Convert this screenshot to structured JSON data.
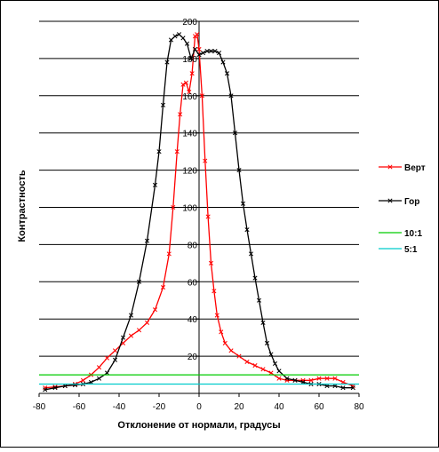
{
  "chart_data": {
    "type": "line",
    "title": "",
    "xlabel": "Отклонение от нормали, градусы",
    "ylabel": "Контрастность",
    "xlim": [
      -80,
      80
    ],
    "ylim": [
      0,
      200
    ],
    "x_ticks": [
      -80,
      -60,
      -40,
      -20,
      0,
      20,
      40,
      60,
      80
    ],
    "y_ticks": [
      20,
      40,
      60,
      80,
      100,
      120,
      140,
      160,
      180,
      200
    ],
    "grid": "horizontal",
    "legend": "right",
    "series": [
      {
        "name": "Верт",
        "color": "#ff0000",
        "marker": "x",
        "x": [
          -77,
          -72,
          -67,
          -62,
          -58,
          -54,
          -50,
          -46,
          -42,
          -38,
          -34,
          -30,
          -26,
          -22,
          -18,
          -15,
          -13,
          -11,
          -9.5,
          -8,
          -6.5,
          -5,
          -3.5,
          -2,
          -1,
          0,
          1.5,
          3,
          4.5,
          6,
          7.5,
          9,
          11,
          13,
          16,
          20,
          24,
          28,
          32,
          36,
          40,
          44,
          48,
          52,
          56,
          60,
          64,
          68,
          72,
          77
        ],
        "y": [
          3,
          3.5,
          4,
          5,
          7,
          10,
          14,
          19,
          23,
          27,
          31,
          34,
          38,
          45,
          57,
          75,
          100,
          130,
          150,
          166,
          167,
          162,
          172,
          192,
          193,
          185,
          160,
          125,
          95,
          70,
          55,
          42,
          33,
          27,
          23,
          20,
          17,
          15,
          13,
          11,
          8,
          7,
          7,
          7,
          7,
          8,
          8,
          8,
          6,
          4
        ]
      },
      {
        "name": "Гор",
        "color": "#000000",
        "marker": "x",
        "x": [
          -77,
          -72,
          -67,
          -62,
          -58,
          -54,
          -50,
          -46,
          -42,
          -38,
          -34,
          -30,
          -26,
          -22,
          -20,
          -18,
          -16,
          -14,
          -12,
          -10,
          -8,
          -6,
          -4,
          -2,
          0,
          2,
          4,
          6,
          8,
          10,
          12,
          14,
          16,
          18,
          20,
          22,
          24,
          26,
          28,
          30,
          32,
          34,
          36,
          38,
          40,
          44,
          48,
          52,
          56,
          60,
          64,
          68,
          72,
          77
        ],
        "y": [
          2,
          3,
          4,
          4.5,
          5,
          6,
          8,
          11,
          18,
          30,
          42,
          60,
          82,
          112,
          130,
          155,
          178,
          190,
          192,
          193,
          191,
          188,
          180,
          185,
          182,
          183,
          184,
          184,
          184,
          183,
          178,
          172,
          160,
          140,
          120,
          102,
          88,
          75,
          62,
          50,
          38,
          27,
          21,
          16,
          12,
          8,
          7,
          6,
          5,
          5,
          4,
          4,
          3,
          3
        ]
      },
      {
        "name": "10:1",
        "color": "#00cc00",
        "marker": "none",
        "x": [
          -80,
          80
        ],
        "y": [
          10,
          10
        ]
      },
      {
        "name": "5:1",
        "color": "#00cccc",
        "marker": "none",
        "x": [
          -80,
          80
        ],
        "y": [
          5,
          5
        ]
      }
    ]
  }
}
